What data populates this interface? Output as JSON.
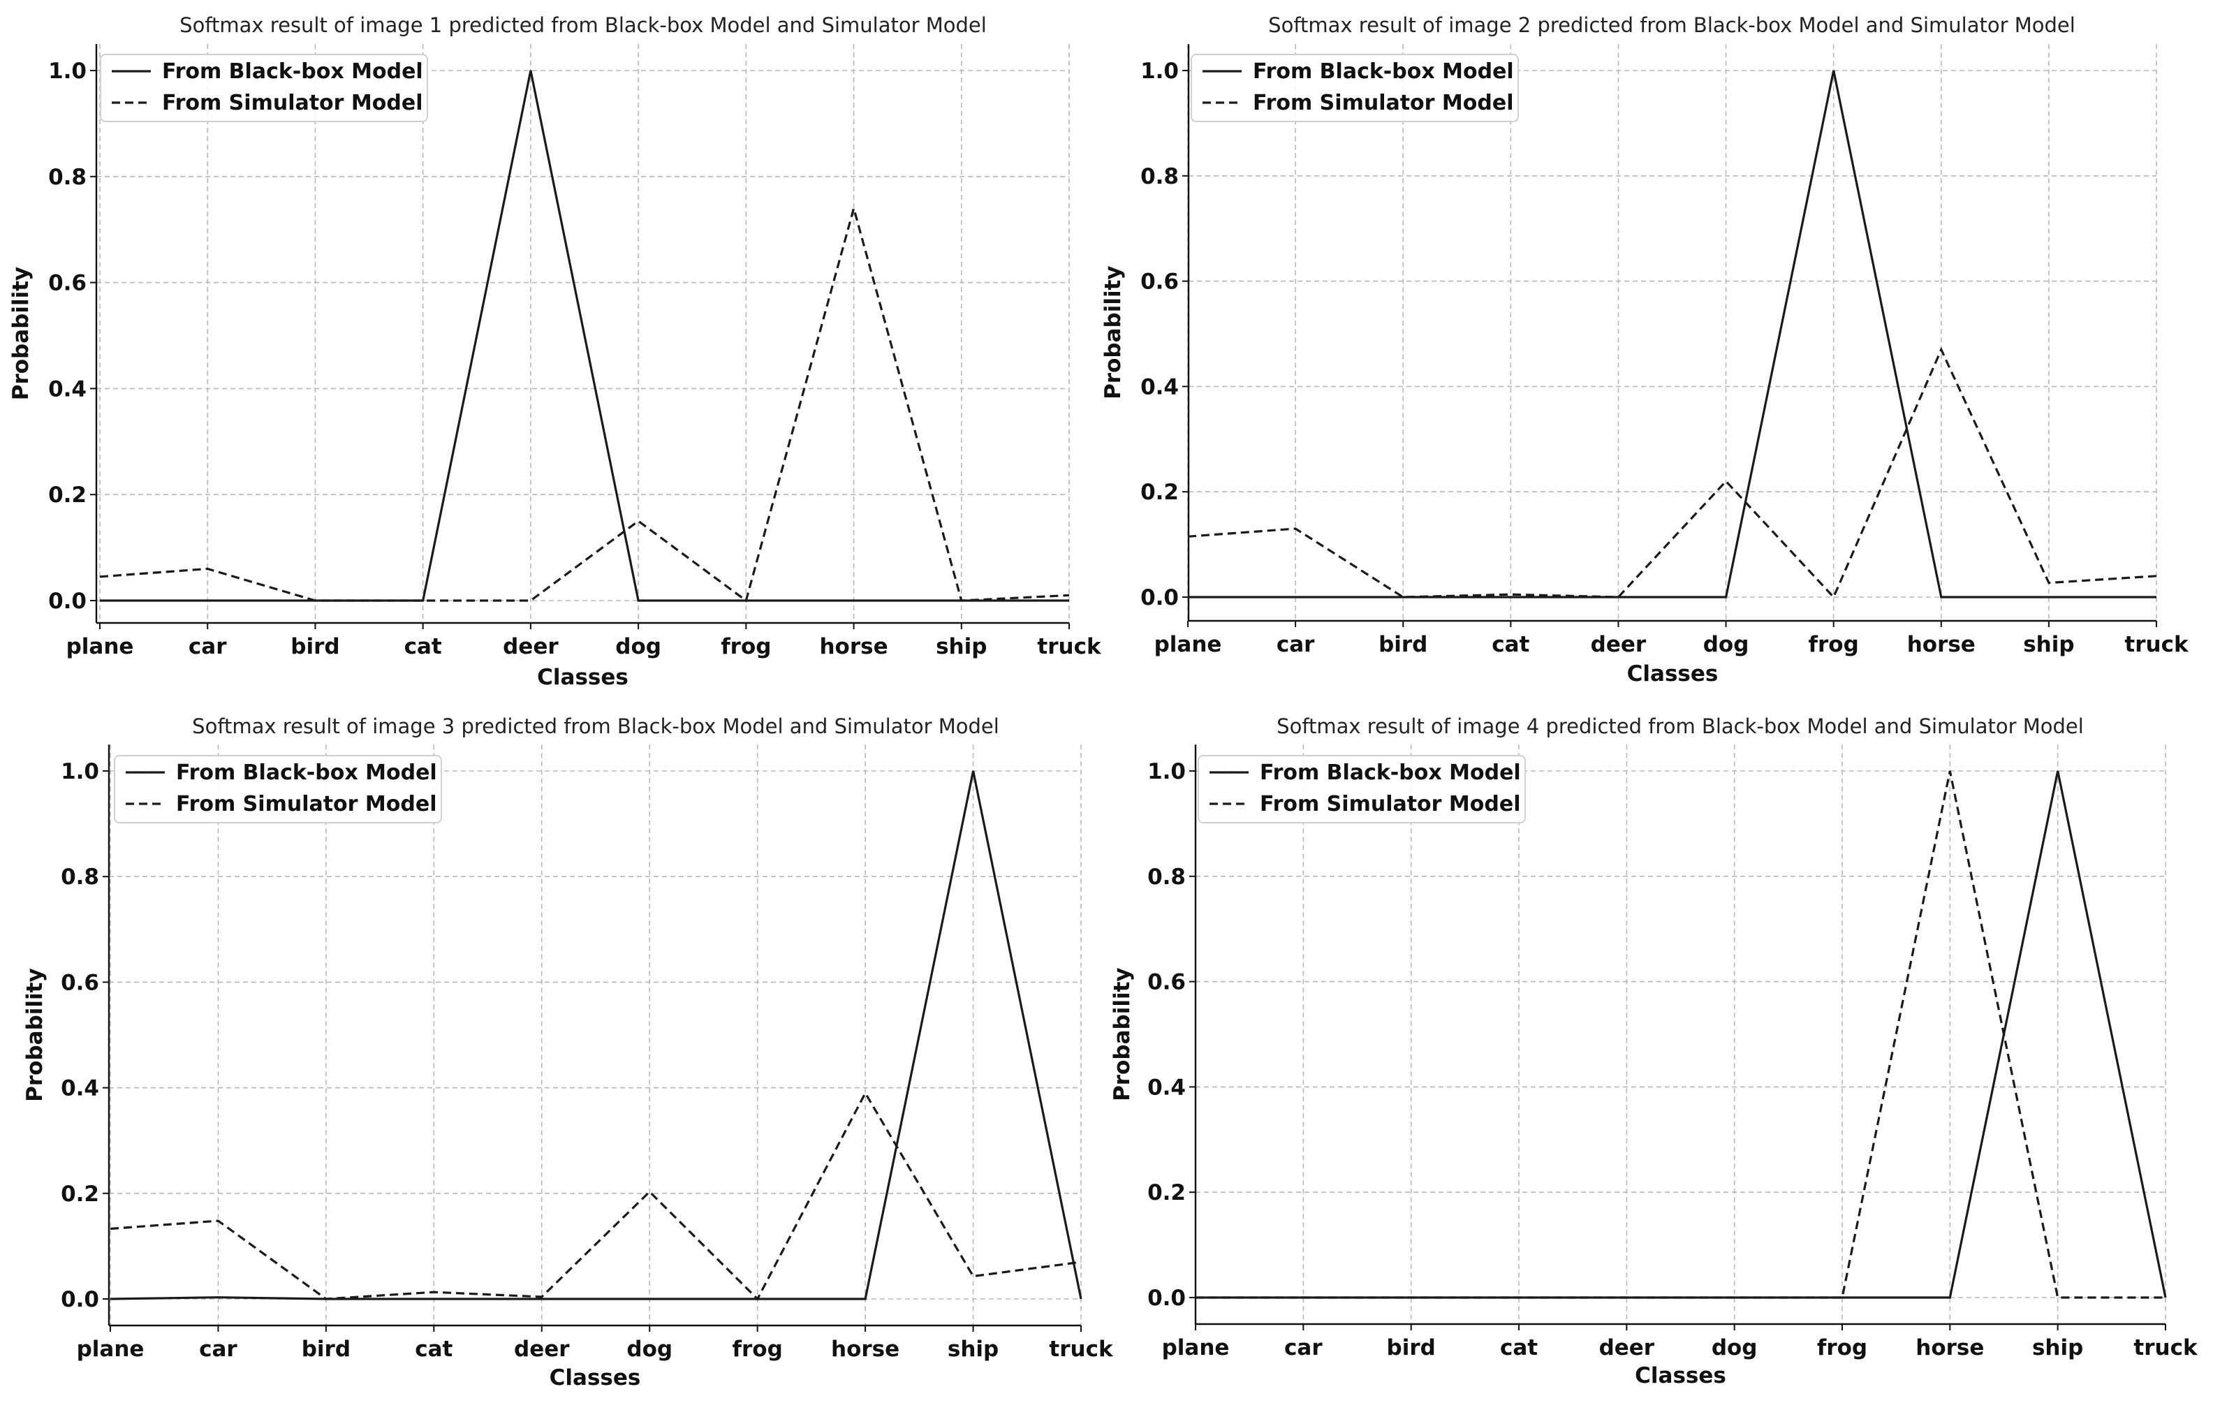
{
  "chart_data": [
    {
      "type": "line",
      "title": "Softmax result of image 1 predicted from Black-box Model and Simulator Model",
      "xlabel": "Classes",
      "ylabel": "Probability",
      "ylim": [
        -0.05,
        1.05
      ],
      "yticks": [
        "0.0",
        "0.2",
        "0.4",
        "0.6",
        "0.8",
        "1.0"
      ],
      "grid": true,
      "legend_position": "top-left",
      "categories": [
        "plane",
        "car",
        "bird",
        "cat",
        "deer",
        "dog",
        "frog",
        "horse",
        "ship",
        "truck"
      ],
      "series": [
        {
          "name": "From Black-box Model",
          "style": "solid",
          "values": [
            0.0,
            0.0,
            0.0,
            0.0,
            1.0,
            0.0,
            0.0,
            0.0,
            0.0,
            0.0
          ]
        },
        {
          "name": "From Simulator Model",
          "style": "dashed",
          "values": [
            0.045,
            0.06,
            0.0,
            0.0,
            0.0,
            0.15,
            0.0,
            0.74,
            0.0,
            0.01
          ]
        }
      ]
    },
    {
      "type": "line",
      "title": "Softmax result of image 2 predicted from Black-box Model and Simulator Model",
      "xlabel": "Classes",
      "ylabel": "Probability",
      "ylim": [
        -0.05,
        1.05
      ],
      "yticks": [
        "0.0",
        "0.2",
        "0.4",
        "0.6",
        "0.8",
        "1.0"
      ],
      "grid": true,
      "legend_position": "top-left",
      "categories": [
        "plane",
        "car",
        "bird",
        "cat",
        "deer",
        "dog",
        "frog",
        "horse",
        "ship",
        "truck"
      ],
      "series": [
        {
          "name": "From Black-box Model",
          "style": "solid",
          "values": [
            0.0,
            0.0,
            0.0,
            0.0,
            0.0,
            0.0,
            1.0,
            0.0,
            0.0,
            0.0
          ]
        },
        {
          "name": "From Simulator Model",
          "style": "dashed",
          "values": [
            0.115,
            0.13,
            0.0,
            0.005,
            0.0,
            0.22,
            0.0,
            0.47,
            0.027,
            0.04
          ]
        }
      ]
    },
    {
      "type": "line",
      "title": "Softmax result of image 3 predicted from Black-box Model and Simulator Model",
      "xlabel": "Classes",
      "ylabel": "Probability",
      "ylim": [
        -0.05,
        1.05
      ],
      "yticks": [
        "0.0",
        "0.2",
        "0.4",
        "0.6",
        "0.8",
        "1.0"
      ],
      "grid": true,
      "legend_position": "top-left",
      "categories": [
        "plane",
        "car",
        "bird",
        "cat",
        "deer",
        "dog",
        "frog",
        "horse",
        "ship",
        "truck"
      ],
      "series": [
        {
          "name": "From Black-box Model",
          "style": "solid",
          "values": [
            0.0,
            0.003,
            0.0,
            0.0,
            0.0,
            0.0,
            0.0,
            0.0,
            1.0,
            0.0
          ]
        },
        {
          "name": "From Simulator Model",
          "style": "dashed",
          "values": [
            0.133,
            0.148,
            0.0,
            0.013,
            0.004,
            0.203,
            0.0,
            0.39,
            0.043,
            0.07
          ]
        }
      ]
    },
    {
      "type": "line",
      "title": "Softmax result of image 4 predicted from Black-box Model and Simulator Model",
      "xlabel": "Classes",
      "ylabel": "Probability",
      "ylim": [
        -0.05,
        1.05
      ],
      "yticks": [
        "0.0",
        "0.2",
        "0.4",
        "0.6",
        "0.8",
        "1.0"
      ],
      "grid": true,
      "legend_position": "top-left",
      "categories": [
        "plane",
        "car",
        "bird",
        "cat",
        "deer",
        "dog",
        "frog",
        "horse",
        "ship",
        "truck"
      ],
      "series": [
        {
          "name": "From Black-box Model",
          "style": "solid",
          "values": [
            0.0,
            0.0,
            0.0,
            0.0,
            0.0,
            0.0,
            0.0,
            0.0,
            1.0,
            0.0
          ]
        },
        {
          "name": "From Simulator Model",
          "style": "dashed",
          "values": [
            0.0,
            0.0,
            0.0,
            0.0,
            0.0,
            0.0,
            0.0,
            1.0,
            0.0,
            0.0
          ]
        }
      ]
    }
  ]
}
